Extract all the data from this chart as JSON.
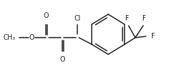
{
  "background": "#ffffff",
  "line_color": "#1a1a1a",
  "line_width": 1.1,
  "text_color": "#1a1a1a",
  "font_size": 7.0,
  "figsize": [
    2.47,
    1.17
  ],
  "dpi": 100,
  "xlim": [
    0,
    247
  ],
  "ylim": [
    0,
    117
  ]
}
